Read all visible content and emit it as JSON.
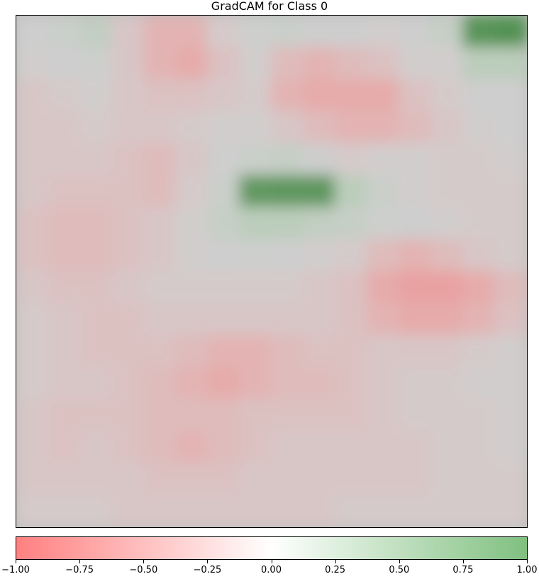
{
  "chart_data": {
    "type": "heatmap",
    "title": "GradCAM for Class 0",
    "xlabel": "",
    "ylabel": "",
    "axes_ticks": false,
    "colormap": {
      "range": [
        -1.0,
        1.0
      ],
      "low_color": "#ff8080",
      "mid_color": "#ffffff",
      "high_color": "#80c080",
      "overlay_base_gray": "#b4b4b4"
    },
    "colorbar": {
      "orientation": "horizontal",
      "placement": "bottom",
      "ticks": [
        -1.0,
        -0.75,
        -0.5,
        -0.25,
        0.0,
        0.25,
        0.5,
        0.75,
        1.0
      ],
      "tick_labels": [
        "−1.00",
        "−0.75",
        "−0.50",
        "−0.25",
        "0.00",
        "0.25",
        "0.50",
        "0.75",
        "1.00"
      ]
    },
    "grid_size": [
      16,
      16
    ],
    "values": [
      [
        0.0,
        0.2,
        0.4,
        -0.3,
        -0.6,
        -0.6,
        -0.2,
        0.1,
        0.2,
        0.0,
        0.0,
        -0.1,
        0.0,
        0.3,
        0.8,
        0.9
      ],
      [
        -0.1,
        0.0,
        0.1,
        -0.3,
        -0.6,
        -0.7,
        -0.4,
        -0.1,
        -0.5,
        -0.6,
        -0.5,
        -0.4,
        -0.1,
        -0.1,
        0.5,
        0.5
      ],
      [
        -0.3,
        -0.2,
        -0.1,
        -0.3,
        -0.4,
        -0.4,
        -0.3,
        -0.2,
        -0.6,
        -0.7,
        -0.7,
        -0.7,
        -0.4,
        -0.2,
        0.0,
        0.0
      ],
      [
        -0.3,
        -0.3,
        -0.2,
        -0.3,
        -0.3,
        -0.2,
        -0.1,
        -0.1,
        -0.3,
        -0.5,
        -0.6,
        -0.6,
        -0.5,
        -0.3,
        -0.1,
        0.0
      ],
      [
        -0.3,
        -0.3,
        -0.3,
        -0.4,
        -0.5,
        -0.3,
        0.0,
        0.2,
        0.3,
        0.0,
        -0.2,
        -0.1,
        -0.1,
        -0.2,
        -0.2,
        -0.1
      ],
      [
        -0.3,
        -0.4,
        -0.4,
        -0.4,
        -0.5,
        -0.2,
        0.2,
        0.6,
        0.7,
        0.7,
        0.5,
        0.2,
        -0.1,
        -0.2,
        -0.2,
        -0.2
      ],
      [
        -0.4,
        -0.5,
        -0.5,
        -0.4,
        -0.3,
        -0.1,
        0.3,
        0.5,
        0.5,
        0.4,
        0.3,
        0.1,
        0.0,
        -0.1,
        -0.2,
        -0.2
      ],
      [
        -0.4,
        -0.5,
        -0.5,
        -0.4,
        -0.3,
        -0.1,
        0.0,
        0.1,
        0.0,
        -0.1,
        -0.2,
        -0.5,
        -0.6,
        -0.5,
        -0.3,
        -0.2
      ],
      [
        -0.3,
        -0.4,
        -0.4,
        -0.3,
        -0.2,
        -0.2,
        -0.2,
        -0.2,
        -0.2,
        -0.3,
        -0.4,
        -0.7,
        -0.8,
        -0.8,
        -0.7,
        -0.5
      ],
      [
        -0.2,
        -0.3,
        -0.4,
        -0.4,
        -0.3,
        -0.3,
        -0.3,
        -0.3,
        -0.3,
        -0.3,
        -0.4,
        -0.6,
        -0.7,
        -0.7,
        -0.6,
        -0.4
      ],
      [
        -0.2,
        -0.3,
        -0.4,
        -0.4,
        -0.4,
        -0.5,
        -0.6,
        -0.6,
        -0.5,
        -0.4,
        -0.4,
        -0.3,
        -0.3,
        -0.3,
        -0.2,
        -0.1
      ],
      [
        -0.2,
        -0.3,
        -0.3,
        -0.4,
        -0.5,
        -0.6,
        -0.7,
        -0.6,
        -0.5,
        -0.5,
        -0.4,
        -0.3,
        -0.2,
        -0.2,
        -0.1,
        -0.1
      ],
      [
        -0.3,
        -0.4,
        -0.4,
        -0.4,
        -0.5,
        -0.5,
        -0.5,
        -0.4,
        -0.4,
        -0.4,
        -0.4,
        -0.3,
        -0.2,
        -0.2,
        -0.2,
        -0.1
      ],
      [
        -0.3,
        -0.4,
        -0.3,
        -0.4,
        -0.5,
        -0.6,
        -0.5,
        -0.4,
        -0.3,
        -0.3,
        -0.3,
        -0.3,
        -0.3,
        -0.2,
        -0.2,
        -0.1
      ],
      [
        -0.3,
        -0.3,
        -0.3,
        -0.3,
        -0.4,
        -0.4,
        -0.4,
        -0.3,
        -0.3,
        -0.3,
        -0.3,
        -0.3,
        -0.3,
        -0.2,
        -0.2,
        -0.2
      ],
      [
        -0.2,
        -0.2,
        -0.2,
        -0.3,
        -0.3,
        -0.3,
        -0.3,
        -0.3,
        -0.3,
        -0.3,
        -0.2,
        -0.2,
        -0.2,
        -0.2,
        -0.2,
        -0.2
      ]
    ]
  }
}
